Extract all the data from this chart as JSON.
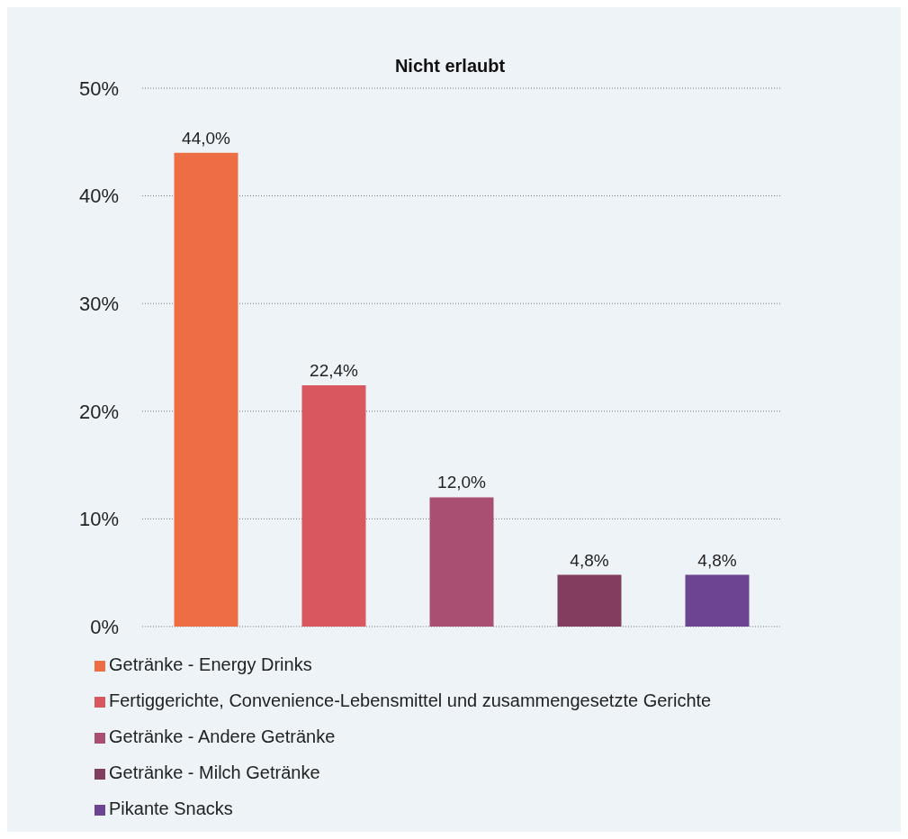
{
  "chart_data": {
    "type": "bar",
    "title": "Nicht erlaubt",
    "categories": [
      null,
      null,
      null,
      null,
      null
    ],
    "series": [
      {
        "name": "Getränke - Energy Drinks",
        "color": "#ed6d45",
        "values": [
          44.0,
          null,
          null,
          null,
          null
        ],
        "value_labels": [
          "44,0%",
          null,
          null,
          null,
          null
        ]
      },
      {
        "name": "Fertiggerichte, Convenience-Lebensmittel und zusammengesetzte Gerichte",
        "color": "#d9575f",
        "values": [
          null,
          22.4,
          null,
          null,
          null
        ],
        "value_labels": [
          null,
          "22,4%",
          null,
          null,
          null
        ]
      },
      {
        "name": "Getränke - Andere Getränke",
        "color": "#a94f72",
        "values": [
          null,
          null,
          12.0,
          null,
          null
        ],
        "value_labels": [
          null,
          null,
          "12,0%",
          null,
          null
        ]
      },
      {
        "name": "Getränke - Milch Getränke",
        "color": "#823e5e",
        "values": [
          null,
          null,
          null,
          4.8,
          null
        ],
        "value_labels": [
          null,
          null,
          null,
          "4,8%",
          null
        ]
      },
      {
        "name": "Pikante Snacks",
        "color": "#6b4590",
        "values": [
          null,
          null,
          null,
          null,
          4.8
        ],
        "value_labels": [
          null,
          null,
          null,
          null,
          "4,8%"
        ]
      }
    ],
    "ylim": [
      0,
      50
    ],
    "yticks": [
      {
        "value": 0,
        "label": "0%"
      },
      {
        "value": 10,
        "label": "10%"
      },
      {
        "value": 20,
        "label": "20%"
      },
      {
        "value": 30,
        "label": "30%"
      },
      {
        "value": 40,
        "label": "40%"
      },
      {
        "value": 50,
        "label": "50%"
      }
    ],
    "grid": "y",
    "legend": "bottom",
    "tick_labels": "y"
  }
}
